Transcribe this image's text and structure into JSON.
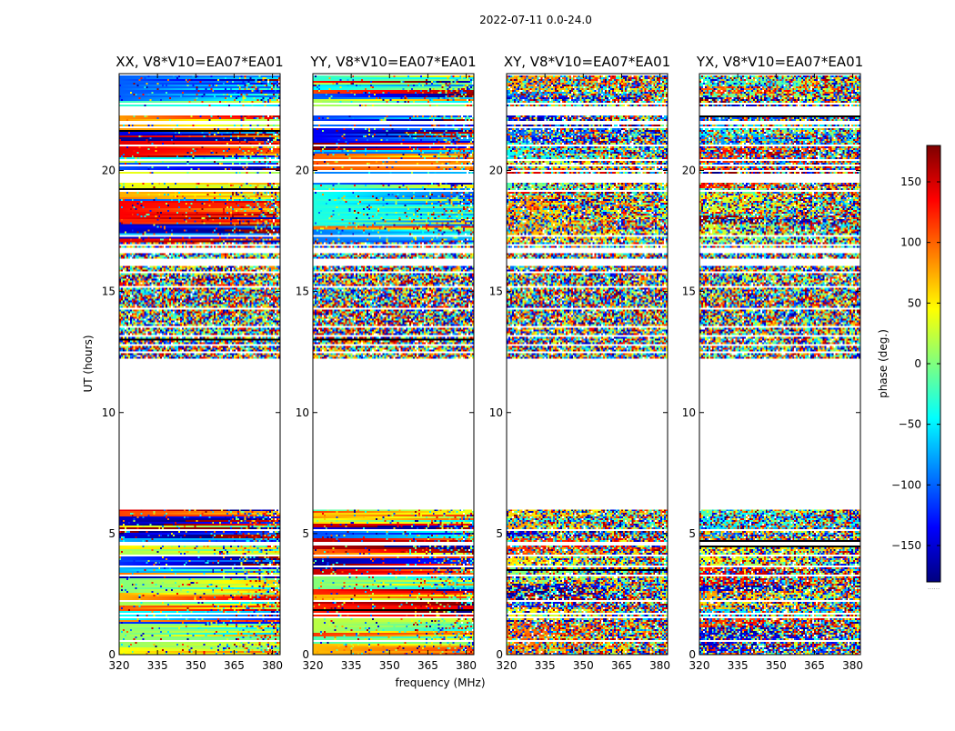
{
  "suptitle": "2022-07-11 0.0-24.0",
  "chart_data": {
    "type": "heatmap",
    "x_axis": {
      "label": "frequency (MHz)",
      "range": [
        320,
        383
      ],
      "ticks": [
        320,
        335,
        350,
        365,
        380
      ]
    },
    "y_axis": {
      "label": "UT (hours)",
      "range": [
        0,
        24
      ],
      "ticks": [
        0,
        5,
        10,
        15,
        20
      ]
    },
    "panels": [
      {
        "title": "XX, V8*V10=EA07*EA01",
        "polarization": "XX",
        "coherence": "high"
      },
      {
        "title": "YY, V8*V10=EA07*EA01",
        "polarization": "YY",
        "coherence": "high"
      },
      {
        "title": "XY, V8*V10=EA07*EA01",
        "polarization": "XY",
        "coherence": "low"
      },
      {
        "title": "YX, V8*V10=EA07*EA01",
        "polarization": "YX",
        "coherence": "low"
      }
    ],
    "data_time_ranges_hours": [
      [
        0.0,
        6.0
      ],
      [
        12.2,
        23.9
      ]
    ],
    "gap_lines_hours": [
      0.6,
      1.5,
      1.7,
      2.2,
      3.3,
      3.6,
      4.1,
      4.55,
      4.6,
      5.1,
      12.5,
      12.8,
      13.2,
      13.5,
      14.25,
      15.2,
      15.8,
      16.9,
      17.3,
      19.2,
      20.0,
      20.2,
      20.4,
      21.0,
      21.8,
      22.3
    ],
    "gap_bands_hours": [
      [
        16.05,
        16.35
      ],
      [
        16.6,
        16.8
      ],
      [
        19.5,
        19.9
      ],
      [
        21.9,
        22.05
      ],
      [
        22.3,
        22.65
      ],
      [
        22.75,
        22.8
      ]
    ],
    "colorbar": {
      "label": "phase (deg.)",
      "range": [
        -180,
        180
      ],
      "ticks": [
        150,
        100,
        50,
        0,
        -50,
        -100,
        -150
      ],
      "tick_labels": [
        "150",
        "100",
        "50",
        "0",
        "−50",
        "−100",
        "−150"
      ],
      "colormap": "jet",
      "colormap_stops": [
        "#00007f",
        "#0000ff",
        "#007fff",
        "#00ffff",
        "#7fff7f",
        "#ffff00",
        "#ff7f00",
        "#ff0000",
        "#7f0000"
      ],
      "under_label": "......"
    }
  }
}
